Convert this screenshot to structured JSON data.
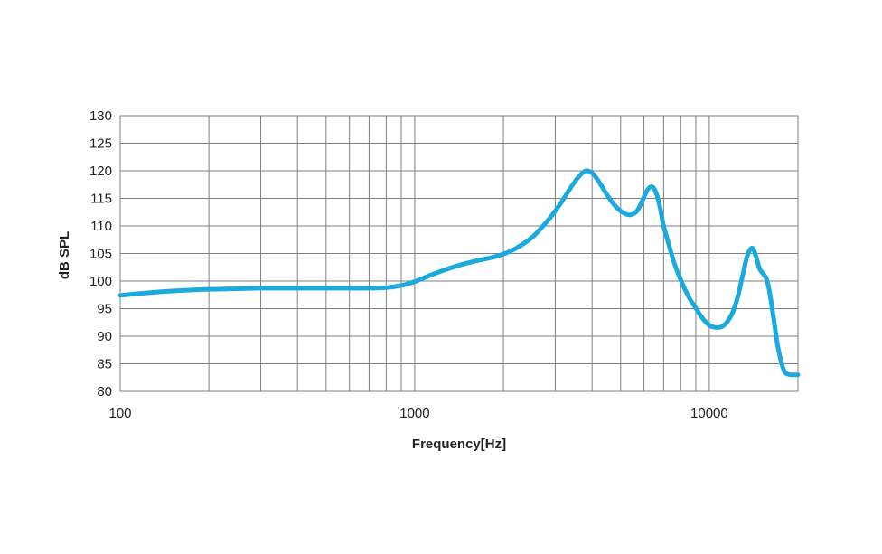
{
  "chart_data": {
    "type": "line",
    "title": "",
    "xlabel": "Frequency[Hz]",
    "ylabel": "dB SPL",
    "x_scale": "log",
    "xlim": [
      100,
      20000
    ],
    "ylim": [
      80,
      130
    ],
    "grid": true,
    "legend": "none",
    "x_ticks": [
      100,
      1000,
      10000
    ],
    "x_tick_labels": [
      "100",
      "1000",
      "10000"
    ],
    "y_ticks": [
      80,
      85,
      90,
      95,
      100,
      105,
      110,
      115,
      120,
      125,
      130
    ],
    "y_tick_labels": [
      "80",
      "85",
      "90",
      "95",
      "100",
      "105",
      "110",
      "115",
      "120",
      "125",
      "130"
    ],
    "series": [
      {
        "color": "#1ba9de",
        "x": [
          100,
          120,
          150,
          200,
          250,
          300,
          400,
          500,
          600,
          700,
          800,
          900,
          1000,
          1100,
          1200,
          1400,
          1600,
          1800,
          2000,
          2200,
          2500,
          2800,
          3000,
          3200,
          3400,
          3600,
          3800,
          4000,
          4200,
          4500,
          4800,
          5100,
          5400,
          5700,
          6000,
          6200,
          6400,
          6600,
          6800,
          7000,
          7300,
          7600,
          8000,
          8500,
          9000,
          9500,
          10000,
          10500,
          11000,
          11500,
          12000,
          12500,
          13000,
          13500,
          14000,
          14400,
          14800,
          15200,
          15600,
          16000,
          16500,
          17000,
          17500,
          18000,
          18500,
          19000,
          19500,
          20000
        ],
        "y": [
          97.4,
          97.8,
          98.2,
          98.5,
          98.6,
          98.7,
          98.7,
          98.7,
          98.7,
          98.7,
          98.8,
          99.2,
          99.9,
          100.8,
          101.6,
          102.8,
          103.6,
          104.2,
          104.9,
          105.9,
          107.9,
          110.7,
          112.7,
          114.9,
          117.1,
          118.9,
          120.0,
          119.6,
          118.2,
          115.6,
          113.6,
          112.4,
          112.0,
          112.8,
          115.2,
          116.7,
          117.1,
          116.0,
          113.4,
          110.0,
          106.5,
          103.3,
          100.2,
          97.2,
          95.1,
          93.2,
          92.0,
          91.6,
          91.7,
          92.6,
          94.3,
          97.2,
          101.2,
          104.8,
          106.0,
          104.5,
          102.3,
          101.4,
          100.5,
          98.2,
          93.6,
          88.8,
          85.6,
          83.6,
          83.1,
          83.0,
          83.0,
          83.0
        ]
      }
    ]
  }
}
